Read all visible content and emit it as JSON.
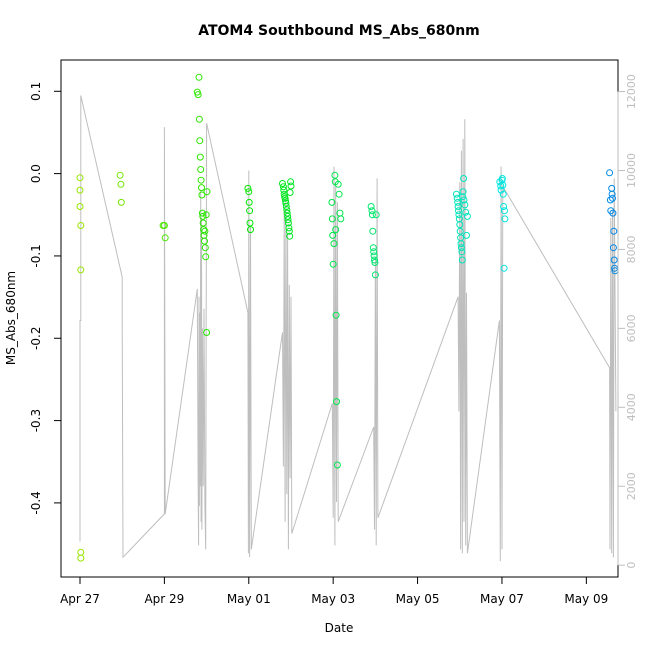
{
  "chart_data": {
    "type": "scatter",
    "title": "ATOM4 Southbound MS_Abs_680nm",
    "xlabel": "Date",
    "ylabel": "MS_Abs_680nm",
    "x_unit": "days since Apr 27",
    "xlim": [
      -0.45,
      12.75
    ],
    "ylim": [
      -0.49,
      0.138
    ],
    "y_ticks": [
      0.1,
      0.0,
      -0.1,
      -0.2,
      -0.3,
      -0.4
    ],
    "y_tick_labels": [
      "0.1",
      "0.0",
      "-0.1",
      "-0.2",
      "-0.3",
      "-0.4"
    ],
    "x_ticks": [
      0,
      2,
      4,
      6,
      8,
      10,
      12
    ],
    "x_tick_labels": [
      "Apr 27",
      "Apr 29",
      "May 01",
      "May 03",
      "May 05",
      "May 07",
      "May 09"
    ],
    "right_axis": {
      "lim": [
        -300,
        12800
      ],
      "ticks": [
        0,
        2000,
        4000,
        6000,
        8000,
        10000,
        12000
      ],
      "tick_labels": [
        "0",
        "2000",
        "4000",
        "6000",
        "8000",
        "10000",
        "12000"
      ],
      "color": "#bebebe"
    },
    "series": [
      {
        "name": "MS_Abs_680nm",
        "x": [
          0.0,
          0.0,
          0.0,
          0.02,
          0.02,
          0.02,
          0.02,
          0.95,
          0.97,
          0.98,
          1.97,
          2.0,
          2.02,
          2.78,
          2.8,
          2.82,
          2.83,
          2.84,
          2.85,
          2.86,
          2.87,
          2.88,
          2.89,
          2.9,
          2.91,
          2.92,
          2.93,
          2.94,
          2.95,
          2.97,
          2.98,
          3.0,
          3.01,
          2.96,
          2.99,
          3.98,
          4.0,
          4.01,
          4.02,
          4.03,
          4.04,
          4.8,
          4.82,
          4.83,
          4.84,
          4.85,
          4.86,
          4.87,
          4.88,
          4.89,
          4.9,
          4.91,
          4.92,
          4.93,
          4.94,
          4.95,
          4.96,
          4.97,
          4.98,
          4.99,
          5.0,
          5.97,
          5.98,
          5.99,
          6.0,
          6.02,
          6.04,
          6.05,
          6.06,
          6.07,
          6.08,
          6.1,
          6.12,
          6.14,
          6.16,
          6.18,
          6.9,
          6.92,
          6.93,
          6.94,
          6.95,
          6.96,
          6.97,
          6.98,
          6.99,
          7.0,
          7.02,
          8.92,
          8.94,
          8.95,
          8.96,
          8.97,
          8.98,
          8.99,
          9.0,
          9.01,
          9.02,
          9.03,
          9.04,
          9.05,
          9.06,
          9.07,
          9.08,
          9.09,
          9.1,
          9.12,
          9.14,
          9.16,
          9.18,
          9.95,
          9.97,
          9.98,
          10.0,
          10.01,
          10.02,
          10.03,
          10.04,
          10.05,
          10.06,
          10.07,
          12.55,
          12.57,
          12.58,
          12.6,
          12.61,
          12.62,
          12.63,
          12.64,
          12.65,
          12.66,
          12.67,
          12.68
        ],
        "y": [
          -0.005,
          -0.02,
          -0.04,
          -0.063,
          -0.117,
          -0.467,
          -0.46,
          -0.002,
          -0.013,
          -0.035,
          -0.063,
          -0.063,
          -0.078,
          0.099,
          0.096,
          0.117,
          0.066,
          0.04,
          0.02,
          0.005,
          -0.008,
          -0.017,
          -0.026,
          -0.048,
          -0.052,
          -0.06,
          -0.068,
          -0.075,
          -0.082,
          -0.09,
          -0.101,
          -0.193,
          -0.022,
          -0.07,
          -0.05,
          -0.018,
          -0.022,
          -0.035,
          -0.045,
          -0.06,
          -0.068,
          -0.012,
          -0.016,
          -0.02,
          -0.025,
          -0.028,
          -0.03,
          -0.033,
          -0.036,
          -0.04,
          -0.044,
          -0.048,
          -0.052,
          -0.056,
          -0.06,
          -0.066,
          -0.07,
          -0.076,
          -0.023,
          -0.01,
          -0.015,
          -0.035,
          -0.055,
          -0.075,
          -0.11,
          -0.085,
          -0.002,
          -0.01,
          -0.068,
          -0.172,
          -0.277,
          -0.354,
          -0.013,
          -0.025,
          -0.048,
          -0.055,
          -0.04,
          -0.045,
          -0.05,
          -0.07,
          -0.09,
          -0.095,
          -0.1,
          -0.105,
          -0.108,
          -0.123,
          -0.05,
          -0.025,
          -0.03,
          -0.035,
          -0.04,
          -0.045,
          -0.05,
          -0.055,
          -0.062,
          -0.07,
          -0.078,
          -0.085,
          -0.09,
          -0.095,
          -0.105,
          -0.028,
          -0.022,
          -0.006,
          -0.032,
          -0.038,
          -0.047,
          -0.075,
          -0.052,
          -0.01,
          -0.015,
          -0.02,
          -0.008,
          -0.006,
          -0.014,
          -0.025,
          -0.04,
          -0.115,
          -0.045,
          -0.055,
          0.001,
          -0.032,
          -0.045,
          -0.018,
          -0.025,
          -0.03,
          -0.048,
          -0.09,
          -0.07,
          -0.105,
          -0.115,
          -0.118
        ],
        "colors": "rainbow gradient by time: yellow-green (Apr 27) to blue (May 09)"
      },
      {
        "name": "secondary (right axis)",
        "type": "line",
        "color": "#bebebe",
        "x": [
          0.0,
          0.0,
          0.02,
          0.02,
          1.0,
          1.0,
          1.02,
          2.0,
          2.0,
          2.02,
          2.78,
          2.8,
          2.81,
          2.82,
          2.83,
          2.84,
          2.85,
          2.86,
          2.87,
          2.88,
          2.89,
          2.9,
          2.92,
          2.94,
          2.96,
          2.98,
          3.0,
          3.98,
          3.99,
          4.0,
          4.02,
          4.04,
          4.06,
          4.8,
          4.82,
          4.84,
          4.86,
          4.88,
          4.9,
          4.92,
          4.94,
          4.96,
          4.98,
          5.0,
          5.02,
          5.98,
          6.0,
          6.02,
          6.04,
          6.06,
          6.08,
          6.1,
          6.12,
          6.96,
          6.98,
          7.0,
          7.02,
          7.04,
          7.06,
          8.96,
          8.98,
          9.0,
          9.02,
          9.04,
          9.06,
          9.08,
          9.1,
          9.12,
          9.14,
          9.16,
          9.18,
          9.94,
          9.96,
          9.98,
          10.0,
          10.02,
          12.55,
          12.56,
          12.58,
          12.6,
          12.62,
          12.64,
          12.66,
          12.7
        ],
        "y": [
          600,
          6200,
          6200,
          11900,
          7300,
          6200,
          200,
          1300,
          11100,
          1300,
          7000,
          2200,
          500,
          6800,
          1500,
          6400,
          2000,
          9500,
          1100,
          8800,
          900,
          6000,
          2000,
          6500,
          1500,
          400,
          11200,
          6400,
          300,
          10000,
          200,
          8600,
          400,
          5900,
          2500,
          9000,
          1100,
          9300,
          1800,
          8400,
          400,
          7100,
          2200,
          6800,
          800,
          4100,
          1200,
          10100,
          500,
          9700,
          1600,
          9200,
          1100,
          3500,
          900,
          7800,
          500,
          9800,
          1200,
          6800,
          3900,
          9700,
          400,
          10500,
          300,
          10800,
          1100,
          11300,
          500,
          6900,
          300,
          6200,
          100,
          10100,
          400,
          9600,
          5000,
          400,
          8800,
          300,
          9000,
          200,
          9800,
          3900
        ]
      }
    ]
  }
}
